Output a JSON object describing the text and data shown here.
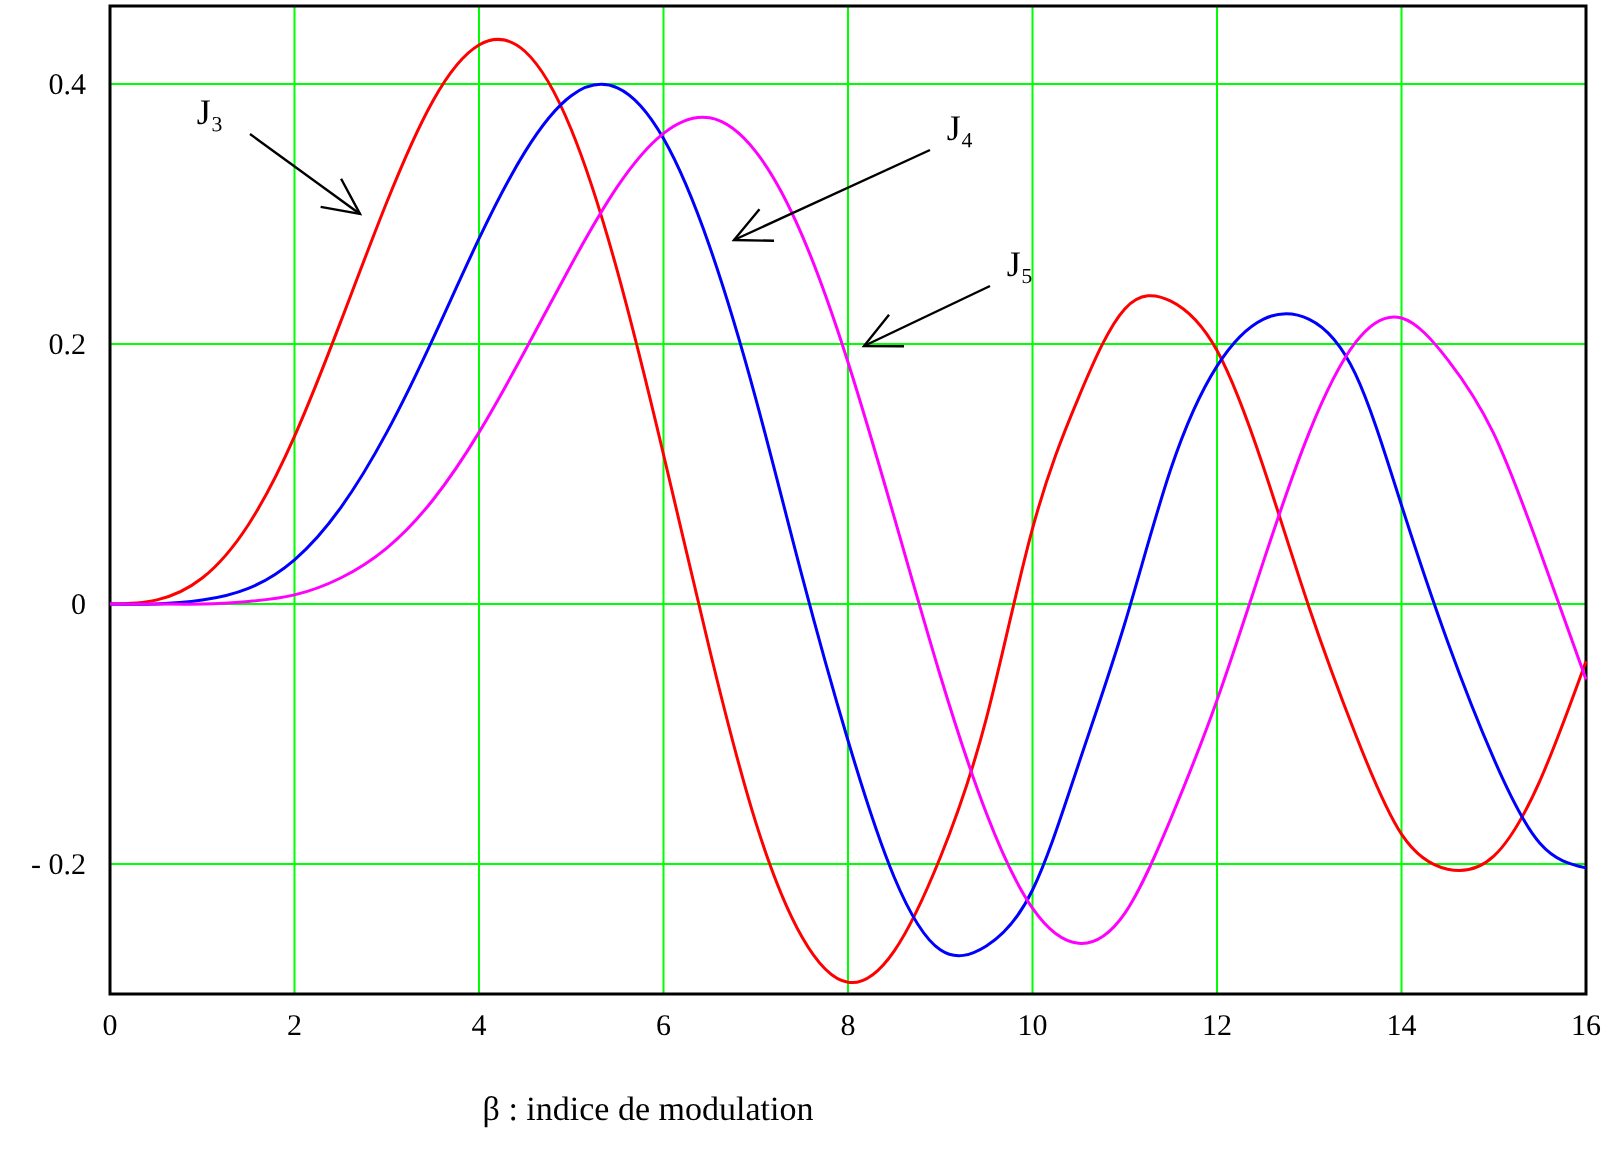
{
  "chart_data": {
    "type": "line",
    "xlabel": "β : indice de modulation",
    "x": [
      0,
      0.5,
      1,
      1.5,
      2,
      2.5,
      3,
      3.5,
      4,
      4.5,
      5,
      5.5,
      6,
      6.5,
      7,
      7.5,
      8,
      8.5,
      9,
      9.5,
      10,
      10.5,
      11,
      11.5,
      12,
      12.5,
      13,
      13.5,
      14,
      14.5,
      15,
      15.5,
      16
    ],
    "series": [
      {
        "color": "#ff0000",
        "values": [
          0,
          0.003,
          0.02,
          0.061,
          0.129,
          0.217,
          0.309,
          0.387,
          0.43,
          0.425,
          0.365,
          0.256,
          0.115,
          -0.035,
          -0.168,
          -0.256,
          -0.291,
          -0.267,
          -0.195,
          -0.088,
          0.058,
          0.159,
          0.227,
          0.233,
          0.195,
          0.106,
          -0.003,
          -0.1,
          -0.177,
          -0.204,
          -0.194,
          -0.136,
          -0.044
        ]
      },
      {
        "color": "#0000ff",
        "values": [
          0,
          0,
          0.003,
          0.012,
          0.034,
          0.074,
          0.132,
          0.204,
          0.281,
          0.348,
          0.391,
          0.397,
          0.358,
          0.275,
          0.158,
          0.022,
          -0.105,
          -0.21,
          -0.266,
          -0.263,
          -0.22,
          -0.123,
          -0.015,
          0.104,
          0.183,
          0.219,
          0.219,
          0.177,
          0.076,
          -0.029,
          -0.119,
          -0.184,
          -0.203
        ]
      },
      {
        "color": "#ff00ff",
        "values": [
          0,
          0,
          0,
          0.002,
          0.007,
          0.02,
          0.043,
          0.08,
          0.132,
          0.195,
          0.261,
          0.321,
          0.362,
          0.374,
          0.348,
          0.284,
          0.186,
          0.067,
          -0.055,
          -0.161,
          -0.234,
          -0.261,
          -0.238,
          -0.165,
          -0.074,
          0.032,
          0.132,
          0.201,
          0.22,
          0.188,
          0.131,
          0.041,
          -0.058
        ]
      }
    ],
    "xlim": [
      0,
      16
    ],
    "xticks": [
      0,
      2,
      4,
      6,
      8,
      10,
      12,
      14,
      16
    ],
    "ylim": [
      -0.3,
      0.46
    ],
    "yticks": [
      {
        "value": -0.2,
        "label": "- 0.2"
      },
      0,
      0.2,
      0.4
    ],
    "grid": true,
    "marker": "none",
    "line_style": "solid",
    "annotations": [
      "J₃",
      "J₄",
      "J₅"
    ]
  }
}
